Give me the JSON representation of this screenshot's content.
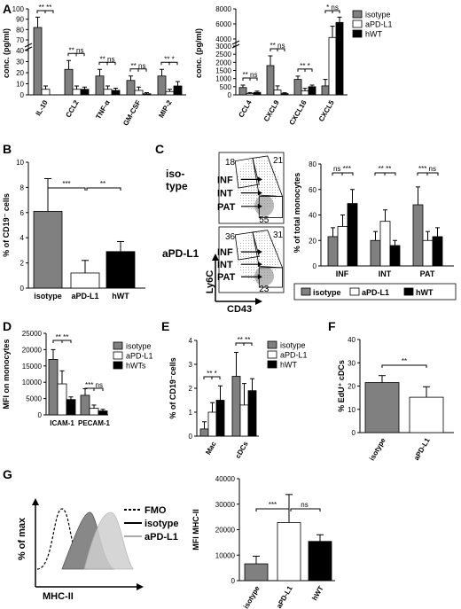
{
  "panel_labels": [
    "A",
    "B",
    "C",
    "D",
    "E",
    "F",
    "G"
  ],
  "legend_series": [
    "isotype",
    "aPD-L1",
    "hWT"
  ],
  "legend_series_d": [
    "isotype",
    "aPD-L1",
    "hWTs"
  ],
  "colors": {
    "isotype": "#808080",
    "aPD-L1": "#ffffff",
    "hWT": "#000000",
    "gate": "#555555"
  },
  "chart_data": [
    {
      "panel": "A-left",
      "type": "bar",
      "categories": [
        "IL-10",
        "CCL2",
        "TNF-α",
        "GM-CSF",
        "MIP-2"
      ],
      "ylabel": "conc. (pg/ml)",
      "yticks": [
        "0",
        "10",
        "20",
        "30",
        "40",
        "70",
        "80",
        "90",
        "100"
      ],
      "axis_break": [
        40,
        70
      ],
      "series": [
        {
          "name": "isotype",
          "values": [
            82,
            23,
            17,
            13,
            17
          ],
          "errors": [
            10,
            8,
            6,
            4,
            6
          ]
        },
        {
          "name": "aPD-L1",
          "values": [
            5,
            5,
            5,
            4,
            3
          ],
          "errors": [
            3,
            3,
            3,
            3,
            2
          ]
        },
        {
          "name": "hWT",
          "values": [
            null,
            5,
            4,
            1,
            8
          ],
          "errors": [
            null,
            2,
            2,
            1,
            4
          ]
        }
      ],
      "significance": [
        {
          "label": "** **",
          "category": "IL-10"
        },
        {
          "label": "** ns",
          "category": "CCL2"
        },
        {
          "label": "** ns",
          "category": "TNF-α"
        },
        {
          "label": "** ns",
          "category": "GM-CSF"
        },
        {
          "label": "** *",
          "category": "MIP-2"
        }
      ]
    },
    {
      "panel": "A-right",
      "type": "bar",
      "categories": [
        "CCL4",
        "CXCL9",
        "CXCL16",
        "CXCL5"
      ],
      "ylabel": "conc. (pg/ml)",
      "yticks": [
        "0",
        "500",
        "1000",
        "1500",
        "2000",
        "2500",
        "3000",
        "4000",
        "6000",
        "8000"
      ],
      "axis_break": [
        3000,
        4000
      ],
      "series": [
        {
          "name": "isotype",
          "values": [
            450,
            1800,
            950,
            550
          ],
          "errors": [
            150,
            600,
            200,
            400
          ]
        },
        {
          "name": "aPD-L1",
          "values": [
            80,
            300,
            250,
            4200
          ],
          "errors": [
            60,
            250,
            150,
            1500
          ]
        },
        {
          "name": "hWT",
          "values": [
            150,
            80,
            500,
            6200
          ],
          "errors": [
            80,
            50,
            100,
            700
          ]
        }
      ],
      "significance": [
        {
          "label": "** ns",
          "category": "CCL4"
        },
        {
          "label": "** ns",
          "category": "CXCL9"
        },
        {
          "label": "** *",
          "category": "CXCL16"
        },
        {
          "label": "* ns",
          "category": "CXCL5"
        }
      ]
    },
    {
      "panel": "B",
      "type": "bar",
      "categories": [
        "isotype",
        "aPD-L1",
        "hWT"
      ],
      "ylabel": "% of CD19⁻ cells",
      "yticks": [
        "0",
        "2",
        "4",
        "6",
        "8",
        "10"
      ],
      "ylim": [
        0,
        10
      ],
      "values": [
        6.1,
        1.2,
        2.9
      ],
      "errors": [
        2.6,
        1.0,
        0.8
      ],
      "significance": [
        {
          "label": "***",
          "from": "isotype",
          "to": "aPD-L1"
        },
        {
          "label": "**",
          "from": "aPD-L1",
          "to": "hWT"
        }
      ]
    },
    {
      "panel": "C",
      "type": "bar",
      "categories": [
        "INF",
        "INT",
        "PAT"
      ],
      "ylabel": "% of total monocytes",
      "yticks": [
        "0",
        "20",
        "40",
        "60",
        "80"
      ],
      "ylim": [
        0,
        80
      ],
      "series": [
        {
          "name": "isotype",
          "values": [
            23,
            20,
            48
          ],
          "errors": [
            7,
            7,
            14
          ]
        },
        {
          "name": "aPD-L1",
          "values": [
            31,
            35,
            20
          ],
          "errors": [
            9,
            9,
            7
          ]
        },
        {
          "name": "hWT",
          "values": [
            49,
            16,
            23
          ],
          "errors": [
            11,
            4,
            7
          ]
        }
      ],
      "significance": [
        {
          "label": "ns ***",
          "category": "INF"
        },
        {
          "label": "** **",
          "category": "INT"
        },
        {
          "label": "*** ns",
          "category": "PAT"
        }
      ]
    },
    {
      "panel": "D",
      "type": "bar",
      "categories": [
        "ICAM-1",
        "PECAM-1"
      ],
      "ylabel": "MFI on monocytes",
      "yticks": [
        "0",
        "5000",
        "10000",
        "15000",
        "20000",
        "25000"
      ],
      "ylim": [
        0,
        25000
      ],
      "series": [
        {
          "name": "isotype",
          "values": [
            17000,
            6000
          ],
          "errors": [
            3000,
            2000
          ]
        },
        {
          "name": "aPD-L1",
          "values": [
            9500,
            2000
          ],
          "errors": [
            4000,
            1000
          ]
        },
        {
          "name": "hWTs",
          "values": [
            4700,
            1200
          ],
          "errors": [
            800,
            500
          ]
        }
      ],
      "significance": [
        {
          "label": "** **",
          "category": "ICAM-1"
        },
        {
          "label": "*** ns",
          "category": "PECAM-1"
        }
      ]
    },
    {
      "panel": "E",
      "type": "bar",
      "categories": [
        "Mac",
        "cDCs"
      ],
      "ylabel": "% of CD19⁻cells",
      "yticks": [
        "0",
        "1",
        "2",
        "3",
        "4"
      ],
      "ylim": [
        0,
        4
      ],
      "series": [
        {
          "name": "isotype",
          "values": [
            0.3,
            2.5
          ],
          "errors": [
            0.3,
            1.0
          ]
        },
        {
          "name": "aPD-L1",
          "values": [
            1.0,
            1.3
          ],
          "errors": [
            0.4,
            0.9
          ]
        },
        {
          "name": "hWT",
          "values": [
            1.5,
            1.9
          ],
          "errors": [
            0.6,
            0.5
          ]
        }
      ],
      "significance": [
        {
          "label": "** *",
          "category": "Mac"
        },
        {
          "label": "** **",
          "category": "cDCs"
        }
      ]
    },
    {
      "panel": "F",
      "type": "bar",
      "categories": [
        "isotype",
        "aPD-L1"
      ],
      "ylabel": "% EdU⁺ cDCs",
      "yticks": [
        "0",
        "10",
        "20",
        "30",
        "40"
      ],
      "ylim": [
        0,
        40
      ],
      "values": [
        21.5,
        15.2
      ],
      "errors": [
        3.0,
        4.5
      ],
      "significance": [
        {
          "label": "**",
          "from": "isotype",
          "to": "aPD-L1"
        }
      ]
    },
    {
      "panel": "G",
      "type": "bar",
      "categories": [
        "isotype",
        "aPD-L1",
        "hWT"
      ],
      "ylabel": "MFI MHC-II",
      "yticks": [
        "0",
        "10000",
        "20000",
        "30000",
        "40000"
      ],
      "ylim": [
        0,
        40000
      ],
      "values": [
        6600,
        22800,
        15400
      ],
      "errors": [
        3000,
        11000,
        2600
      ],
      "significance": [
        {
          "label": "***",
          "from": "isotype",
          "to": "aPD-L1"
        },
        {
          "label": "ns",
          "from": "aPD-L1",
          "to": "hWT"
        }
      ]
    }
  ],
  "flow_c": {
    "row_labels": [
      "iso-\ntype",
      "aPD-L1"
    ],
    "ylabel": "Ly6C",
    "xlabel": "CD43",
    "gate_labels": [
      "INF",
      "INT",
      "PAT"
    ],
    "plots": [
      {
        "counts": [
          "18",
          "21",
          "55"
        ],
        "gate_values": [
          18,
          21,
          55
        ]
      },
      {
        "counts": [
          "36",
          "31",
          "23"
        ],
        "gate_values": [
          36,
          31,
          23
        ]
      }
    ]
  },
  "flow_g": {
    "xlabel": "MHC-II",
    "ylabel": "% of max",
    "legend": [
      "FMO",
      "isotype",
      "aPD-L1"
    ]
  }
}
